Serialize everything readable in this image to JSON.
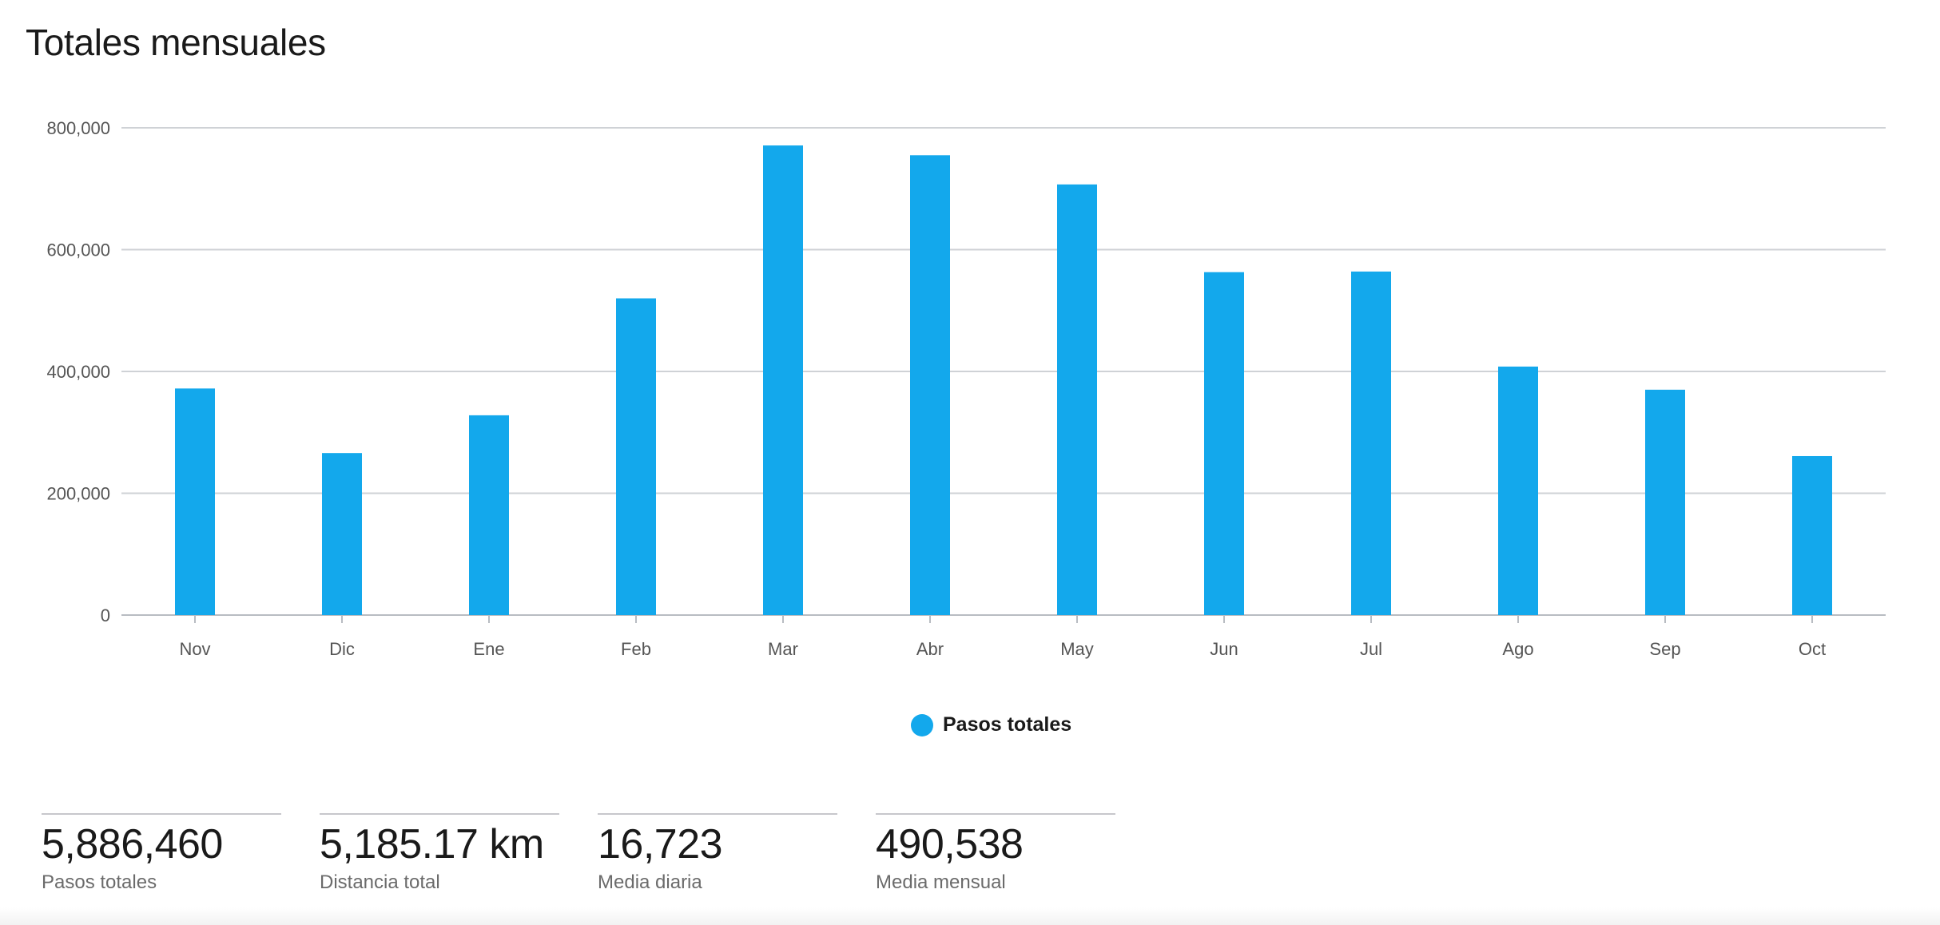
{
  "title": "Totales mensuales",
  "colors": {
    "bar": "#13a8ec",
    "grid": "#cfd2d6",
    "axis": "#b8bcc2"
  },
  "chart_data": {
    "type": "bar",
    "categories": [
      "Nov",
      "Dic",
      "Ene",
      "Feb",
      "Mar",
      "Abr",
      "May",
      "Jun",
      "Jul",
      "Ago",
      "Sep",
      "Oct"
    ],
    "series": [
      {
        "name": "Pasos totales",
        "values": [
          372000,
          266000,
          328000,
          520000,
          771000,
          755000,
          707000,
          563000,
          564000,
          408000,
          370000,
          261000
        ]
      }
    ],
    "ylim": [
      0,
      800000
    ],
    "yticks": [
      0,
      200000,
      400000,
      600000,
      800000
    ],
    "ytick_labels": [
      "0",
      "200,000",
      "400,000",
      "600,000",
      "800,000"
    ],
    "grid": true,
    "legend_position": "bottom-center"
  },
  "legend": {
    "label": "Pasos totales"
  },
  "stats": [
    {
      "value": "5,886,460",
      "label": "Pasos totales"
    },
    {
      "value": "5,185.17 km",
      "label": "Distancia total"
    },
    {
      "value": "16,723",
      "label": "Media diaria"
    },
    {
      "value": "490,538",
      "label": "Media mensual"
    }
  ]
}
